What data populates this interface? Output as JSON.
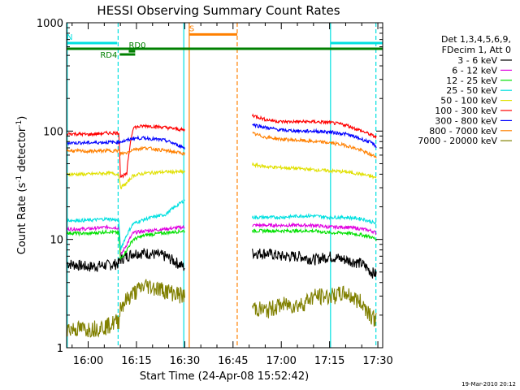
{
  "chart_data": {
    "type": "line",
    "title": "HESSI Observing Summary Count Rates",
    "xlabel": "Start Time (24-Apr-08 15:52:42)",
    "ylabel_prefix": "Count Rate (s",
    "ylabel_sup1": "-1",
    "ylabel_mid": " detector",
    "ylabel_sup2": "-1",
    "ylabel_suffix": ")",
    "y_scale": "log",
    "xlim_minutes": [
      -6.7,
      91.5
    ],
    "ylim": [
      1,
      1000
    ],
    "x_ticks": [
      {
        "value": 0,
        "label": "16:00"
      },
      {
        "value": 15,
        "label": "16:15"
      },
      {
        "value": 30,
        "label": "16:30"
      },
      {
        "value": 45,
        "label": "16:45"
      },
      {
        "value": 60,
        "label": "17:00"
      },
      {
        "value": 75,
        "label": "17:15"
      },
      {
        "value": 90,
        "label": "17:30"
      }
    ],
    "y_ticks": [
      {
        "value": 1,
        "label": "1"
      },
      {
        "value": 10,
        "label": "10"
      },
      {
        "value": 100,
        "label": "100"
      },
      {
        "value": 1000,
        "label": "1000"
      }
    ],
    "legend_title": [
      "Det 1,3,4,5,6,9,",
      "FDecim 1, Att 0"
    ],
    "legend_placement": "right",
    "series": [
      {
        "name": "3 - 6 keV",
        "color": "#000000",
        "segments": [
          {
            "x": [
              -6.5,
              0,
              6,
              9.5,
              10,
              12,
              14,
              18,
              24,
              30
            ],
            "y": [
              6,
              5.6,
              5.8,
              6,
              6.5,
              7,
              7.5,
              7.5,
              7,
              5.5
            ]
          },
          {
            "x": [
              51,
              55,
              60,
              66,
              70,
              75,
              80,
              85,
              88,
              89.5
            ],
            "y": [
              7.5,
              7.5,
              7,
              7,
              6.5,
              7,
              6.5,
              6,
              5,
              4.8
            ]
          }
        ]
      },
      {
        "name": "6 - 12 keV",
        "color": "#e000e0",
        "segments": [
          {
            "x": [
              -6.5,
              0,
              6,
              9.5,
              10,
              12,
              14,
              18,
              24,
              30
            ],
            "y": [
              12.5,
              12.5,
              13,
              12.8,
              7,
              9,
              11.5,
              12,
              12.5,
              13
            ]
          },
          {
            "x": [
              51,
              55,
              60,
              66,
              70,
              75,
              80,
              85,
              88,
              89.5
            ],
            "y": [
              13.5,
              13.5,
              13.5,
              13.5,
              13.5,
              13,
              13,
              12.5,
              12,
              11.5
            ]
          }
        ]
      },
      {
        "name": "12 - 25 keV",
        "color": "#00e000",
        "segments": [
          {
            "x": [
              -6.5,
              0,
              6,
              9.5,
              10,
              12,
              14,
              18,
              24,
              30
            ],
            "y": [
              11.5,
              11.3,
              11.8,
              11.5,
              6.5,
              8,
              10,
              11,
              11.5,
              12
            ]
          },
          {
            "x": [
              51,
              55,
              60,
              66,
              70,
              75,
              80,
              85,
              88,
              89.5
            ],
            "y": [
              12,
              12,
              12,
              12,
              12,
              11.5,
              11.5,
              11,
              10.5,
              10
            ]
          }
        ]
      },
      {
        "name": "25 - 50 keV",
        "color": "#00e0e0",
        "segments": [
          {
            "x": [
              -6.5,
              0,
              6,
              9.5,
              10,
              12,
              14,
              18,
              24,
              30
            ],
            "y": [
              15,
              15,
              15.5,
              15,
              8,
              11,
              14,
              15.5,
              17,
              23
            ]
          },
          {
            "x": [
              51,
              55,
              60,
              66,
              70,
              75,
              80,
              85,
              88,
              89.5
            ],
            "y": [
              16,
              16,
              16,
              16.5,
              16.5,
              16,
              16,
              15.5,
              14.5,
              14
            ]
          }
        ]
      },
      {
        "name": "50 - 100 keV",
        "color": "#e0e000",
        "segments": [
          {
            "x": [
              -6.5,
              0,
              6,
              9.5,
              10,
              12,
              14,
              18,
              24,
              30
            ],
            "y": [
              40,
              40,
              41,
              40,
              30,
              33,
              39,
              41,
              42,
              42
            ]
          },
          {
            "x": [
              51,
              55,
              60,
              66,
              70,
              75,
              80,
              85,
              88,
              89.5
            ],
            "y": [
              49,
              47,
              46,
              45,
              44,
              43,
              42,
              40,
              38,
              37
            ]
          }
        ]
      },
      {
        "name": "100 - 300 keV",
        "color": "#ff0000",
        "segments": [
          {
            "x": [
              -6.5,
              0,
              6,
              9.5,
              10,
              12,
              14,
              18,
              24,
              30
            ],
            "y": [
              95,
              93,
              96,
              96,
              38,
              40,
              108,
              112,
              108,
              102
            ]
          },
          {
            "x": [
              51,
              55,
              60,
              66,
              70,
              75,
              80,
              85,
              88,
              89.5
            ],
            "y": [
              140,
              128,
              122,
              122,
              122,
              120,
              114,
              100,
              92,
              88
            ]
          }
        ]
      },
      {
        "name": "300 - 800 keV",
        "color": "#0000ff",
        "segments": [
          {
            "x": [
              -6.5,
              0,
              6,
              9.5,
              10,
              12,
              14,
              18,
              24,
              30
            ],
            "y": [
              78,
              78,
              79,
              79,
              80,
              82,
              86,
              86,
              82,
              70
            ]
          },
          {
            "x": [
              51,
              55,
              60,
              66,
              70,
              75,
              80,
              85,
              88,
              89.5
            ],
            "y": [
              115,
              108,
              102,
              100,
              100,
              98,
              94,
              84,
              78,
              72
            ]
          }
        ]
      },
      {
        "name": "800 - 7000 keV",
        "color": "#ff8000",
        "segments": [
          {
            "x": [
              -6.5,
              0,
              6,
              9.5,
              10,
              12,
              14,
              18,
              24,
              30
            ],
            "y": [
              66,
              65,
              66,
              66,
              62,
              63,
              68,
              70,
              66,
              62
            ]
          },
          {
            "x": [
              51,
              55,
              60,
              66,
              70,
              75,
              80,
              85,
              88,
              89.5
            ],
            "y": [
              95,
              88,
              84,
              82,
              80,
              78,
              74,
              66,
              60,
              58
            ]
          }
        ]
      },
      {
        "name": "7000 - 20000 keV",
        "color": "#808000",
        "segments": [
          {
            "x": [
              -6.5,
              0,
              6,
              9.5,
              10,
              12,
              14,
              18,
              24,
              30
            ],
            "y": [
              1.5,
              1.5,
              1.6,
              1.8,
              2.4,
              2.8,
              3.2,
              3.8,
              3.4,
              3
            ]
          },
          {
            "x": [
              51,
              55,
              60,
              66,
              70,
              75,
              80,
              85,
              88,
              89.5
            ],
            "y": [
              2.4,
              2.2,
              2.5,
              2.5,
              3,
              3,
              3.2,
              2.6,
              2,
              1.8
            ]
          }
        ]
      }
    ],
    "flag_bars": [
      {
        "label": "N",
        "color": "#00e0e0",
        "x_start": -6.7,
        "x_end": 9,
        "y": 650
      },
      {
        "label": "",
        "color": "#00e0e0",
        "x_start": 75.3,
        "x_end": 91.5,
        "y": 650
      },
      {
        "label": "",
        "color": "#008000",
        "x_start": -6.7,
        "x_end": 91.5,
        "y": 575
      },
      {
        "label": "RD0",
        "color": "#008000",
        "x_start": 12.6,
        "x_end": 14.6,
        "y": 545
      },
      {
        "label": "RD4",
        "color": "#008000",
        "x_start": 9.8,
        "x_end": 14.6,
        "y": 510
      },
      {
        "label": "S",
        "color": "#ff8000",
        "x_start": 31.4,
        "x_end": 46.3,
        "y": 780
      }
    ],
    "vertical_lines": [
      {
        "x": -6.5,
        "color": "#00e0e0",
        "style": "solid"
      },
      {
        "x": 9.3,
        "color": "#00e0e0",
        "style": "dashed"
      },
      {
        "x": 29.7,
        "color": "#00e0e0",
        "style": "solid"
      },
      {
        "x": 31.4,
        "color": "#ff8000",
        "style": "solid"
      },
      {
        "x": 46.3,
        "color": "#ff8000",
        "style": "dashed"
      },
      {
        "x": 75.3,
        "color": "#00e0e0",
        "style": "solid"
      },
      {
        "x": 89.4,
        "color": "#00e0e0",
        "style": "dashed"
      }
    ],
    "timestamp": "19-Mar-2010 20:12"
  }
}
